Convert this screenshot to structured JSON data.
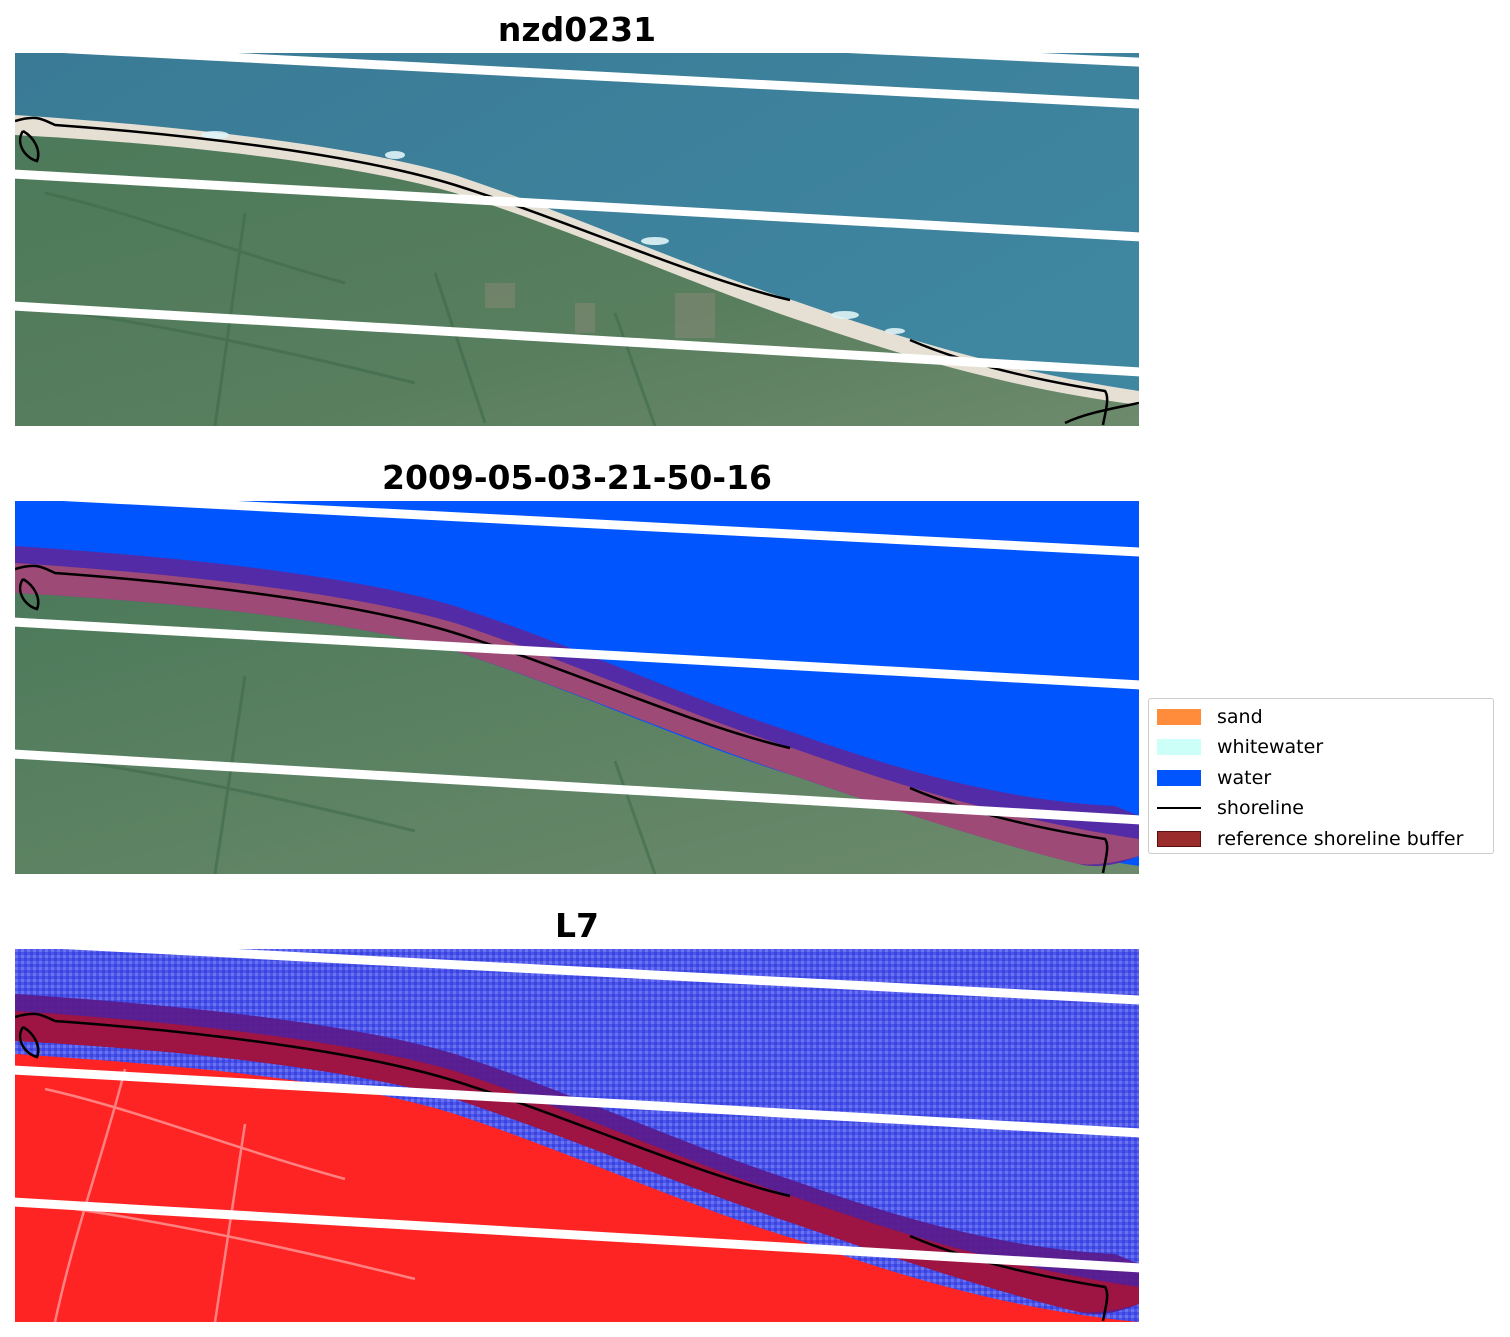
{
  "panels": [
    {
      "title": "nzd0231",
      "kind": "rgb"
    },
    {
      "title": "2009-05-03-21-50-16",
      "kind": "classified"
    },
    {
      "title": "L7",
      "kind": "mndwi"
    }
  ],
  "legend": {
    "items": [
      {
        "label": "sand",
        "type": "patch",
        "color": "#ff8c3a"
      },
      {
        "label": "whitewater",
        "type": "patch",
        "color": "#ccfff7"
      },
      {
        "label": "water",
        "type": "patch",
        "color": "#0055ff"
      },
      {
        "label": "shoreline",
        "type": "line",
        "color": "#000000"
      },
      {
        "label": "reference shoreline buffer",
        "type": "patch",
        "color": "#9b2c2c"
      }
    ]
  },
  "colors": {
    "sea_rgb": "#3d7e98",
    "land_rgb": "#4f7a5a",
    "beach": "#e8e2d6",
    "water_class": "#0055ff",
    "mndwi_water": "#4a52e8",
    "mndwi_land": "#ff2020",
    "buffer_on_water": "#5a2a9a",
    "buffer_on_land": "#a04a6e",
    "buffer_on_land_mndwi": "#a8143c"
  }
}
